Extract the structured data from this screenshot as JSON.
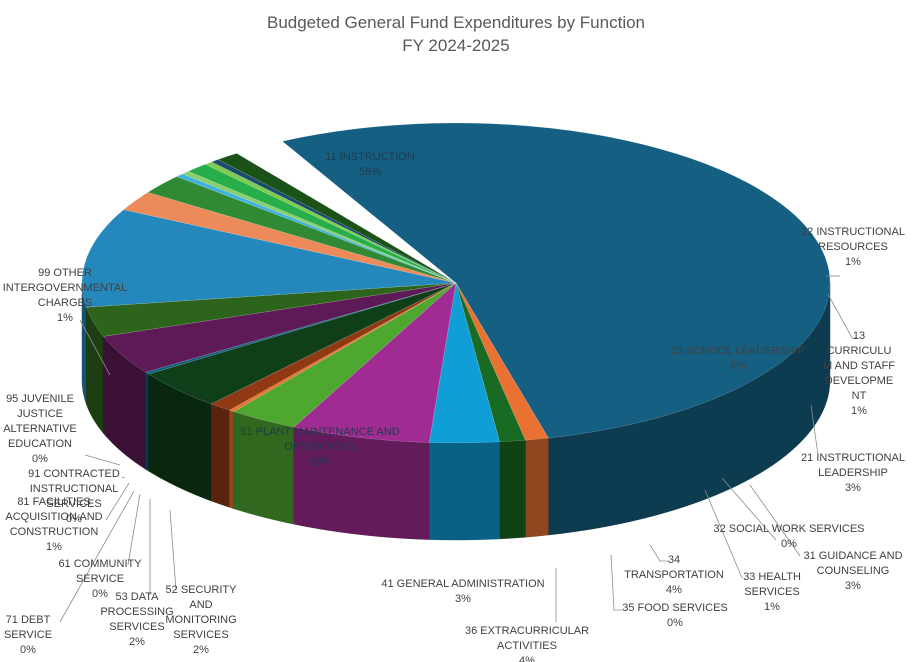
{
  "chart_data": {
    "type": "pie",
    "style": "3d",
    "title": "Budgeted General Fund Expenditures by Function",
    "subtitle": "FY 2024-2025",
    "slices": [
      {
        "label": "11 INSTRUCTION",
        "pct_label": "58%",
        "value": 58,
        "color": "#156082"
      },
      {
        "label": "12 INSTRUCTIONAL RESOURCES",
        "pct_label": "1%",
        "value": 1,
        "color": "#e97132"
      },
      {
        "label": "13 CURRICULUM AND STAFF DEVELOPMENT",
        "pct_label": "1%",
        "value": 1,
        "color": "#196b24"
      },
      {
        "label": "21 INSTRUCTIONAL LEADERSHIP",
        "pct_label": "3%",
        "value": 3,
        "color": "#0f9ed5"
      },
      {
        "label": "23 SCHOOL LEADERSHIP",
        "pct_label": "6%",
        "value": 6,
        "color": "#a02b93"
      },
      {
        "label": "31 GUIDANCE AND COUNSELING",
        "pct_label": "3%",
        "value": 3,
        "color": "#4ea72e"
      },
      {
        "label": "32 SOCIAL WORK SERVICES",
        "pct_label": "0%",
        "value": 0,
        "color": "#e97132"
      },
      {
        "label": "33 HEALTH SERVICES",
        "pct_label": "1%",
        "value": 1,
        "color": "#8f3a12"
      },
      {
        "label": "34 TRANSPORTATION",
        "pct_label": "4%",
        "value": 4,
        "color": "#0e3f18"
      },
      {
        "label": "35 FOOD SERVICES",
        "pct_label": "0%",
        "value": 0,
        "color": "#0a5f7f"
      },
      {
        "label": "36 EXTRACURRICULAR ACTIVITIES",
        "pct_label": "4%",
        "value": 4,
        "color": "#5e1a56"
      },
      {
        "label": "41 GENERAL ADMINISTRATION",
        "pct_label": "3%",
        "value": 3,
        "color": "#2d641c"
      },
      {
        "label": "51 PLANT MAINTENANCE AND OPERATIONS",
        "pct_label": "10%",
        "value": 10,
        "color": "#2488bd"
      },
      {
        "label": "52 SECURITY AND MONITORING SERVICES",
        "pct_label": "2%",
        "value": 2,
        "color": "#ec8a5a"
      },
      {
        "label": "53 DATA PROCESSING SERVICES",
        "pct_label": "2%",
        "value": 2,
        "color": "#2f8a33"
      },
      {
        "label": "61 COMMUNITY SERVICE",
        "pct_label": "0%",
        "value": 0,
        "color": "#3fb2de"
      },
      {
        "label": "71 DEBT SERVICE",
        "pct_label": "0%",
        "value": 0,
        "color": "#8ad06a"
      },
      {
        "label": "81 FACILITIES ACQUISITION AND CONSTRUCTION",
        "pct_label": "1%",
        "value": 1,
        "color": "#27ae4a"
      },
      {
        "label": "91 CONTRACTED INSTRUCTIONAL SERVICES",
        "pct_label": "0%",
        "value": 0,
        "color": "#7dcc4f"
      },
      {
        "label": "95 JUVENILE JUSTICE ALTERNATIVE EDUCATION",
        "pct_label": "0%",
        "value": 0,
        "color": "#1b4d6b"
      },
      {
        "label": "99 OTHER INTERGOVERNMENTAL CHARGES",
        "pct_label": "1%",
        "value": 1,
        "color": "#1a5217"
      }
    ]
  }
}
